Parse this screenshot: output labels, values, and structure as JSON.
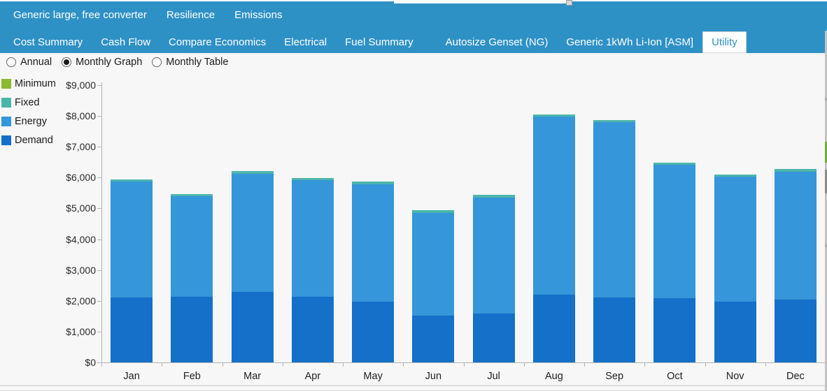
{
  "colors": {
    "tab_bar": "#2e91c6",
    "page_bg": "#f7f7f7",
    "axis": "#b4b4b4",
    "selected_tab_text": "#2e91c6",
    "minimum": "#8bba2d",
    "fixed": "#4cb5ab",
    "energy": "#3596d9",
    "demand": "#1470c8"
  },
  "top_tabs": {
    "items": [
      {
        "label": "Generic large, free converter"
      },
      {
        "label": "Resilience"
      },
      {
        "label": "Emissions"
      }
    ]
  },
  "sub_tabs": {
    "selected": "Utility",
    "items": [
      {
        "label": "Cost Summary"
      },
      {
        "label": "Cash Flow"
      },
      {
        "label": "Compare Economics"
      },
      {
        "label": "Electrical"
      },
      {
        "label": "Fuel Summary"
      },
      {
        "label": "Autosize Genset (NG)"
      },
      {
        "label": "Generic 1kWh Li-Ion [ASM]"
      },
      {
        "label": "Utility"
      }
    ]
  },
  "view_options": {
    "options": [
      {
        "label": "Annual",
        "selected": false
      },
      {
        "label": "Monthly Graph",
        "selected": true
      },
      {
        "label": "Monthly Table",
        "selected": false
      }
    ]
  },
  "legend": {
    "items": [
      {
        "label": "Minimum",
        "color": "#8bba2d"
      },
      {
        "label": "Fixed",
        "color": "#4cb5ab"
      },
      {
        "label": "Energy",
        "color": "#3596d9"
      },
      {
        "label": "Demand",
        "color": "#1470c8"
      }
    ]
  },
  "chart_data": {
    "type": "bar",
    "stacked": true,
    "categories": [
      "Jan",
      "Feb",
      "Mar",
      "Apr",
      "May",
      "Jun",
      "Jul",
      "Aug",
      "Sep",
      "Oct",
      "Nov",
      "Dec"
    ],
    "series": [
      {
        "name": "Demand",
        "color": "#1470c8",
        "values": [
          2110,
          2130,
          2290,
          2130,
          1980,
          1510,
          1590,
          2210,
          2100,
          2080,
          1980,
          2040
        ]
      },
      {
        "name": "Energy",
        "color": "#3596d9",
        "values": [
          3760,
          3260,
          3840,
          3780,
          3810,
          3350,
          3770,
          5760,
          5690,
          4330,
          4040,
          4150
        ]
      },
      {
        "name": "Fixed",
        "color": "#4cb5ab",
        "values": [
          80,
          80,
          80,
          80,
          80,
          80,
          80,
          80,
          80,
          80,
          80,
          80
        ]
      },
      {
        "name": "Minimum",
        "color": "#8bba2d",
        "values": [
          0,
          0,
          0,
          0,
          0,
          0,
          0,
          0,
          0,
          0,
          0,
          0
        ]
      }
    ],
    "title": "",
    "xlabel": "",
    "ylabel": "",
    "ylim": [
      0,
      9000
    ],
    "ytick_step": 1000,
    "ytick_prefix": "$",
    "grid": false,
    "legend_position": "left"
  }
}
